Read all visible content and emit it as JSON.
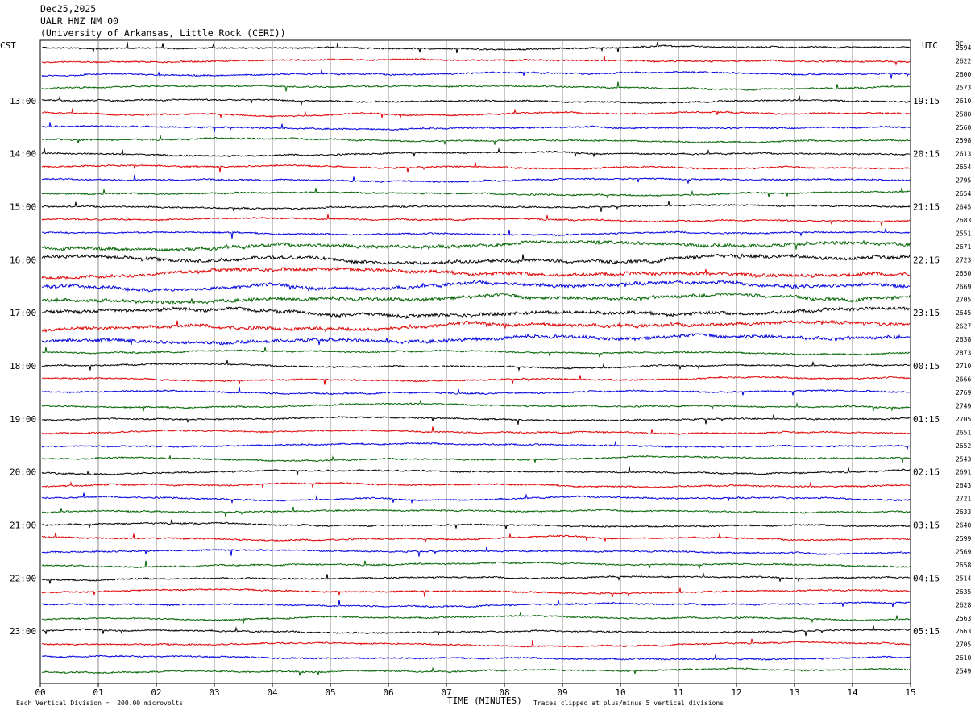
{
  "header": {
    "date": "Dec25,2025",
    "station": "UALR HNZ NM 00",
    "network": "(University of Arkansas, Little Rock (CERI))"
  },
  "left_axis_title": "CST",
  "right_axis_title": "UTC",
  "dc_title": "DC",
  "chart_data": {
    "type": "line",
    "xlabel": "TIME (MINUTES)",
    "xlim": [
      0,
      15
    ],
    "x_ticks": [
      "00",
      "01",
      "02",
      "03",
      "04",
      "05",
      "06",
      "07",
      "08",
      "09",
      "10",
      "11",
      "12",
      "13",
      "14",
      "15"
    ],
    "trace_colors": [
      "#000000",
      "#e00000",
      "#0000e0",
      "#006400"
    ],
    "trace_count": 48,
    "left_time_labels": [
      {
        "trace": 4,
        "text": "13:00"
      },
      {
        "trace": 8,
        "text": "14:00"
      },
      {
        "trace": 12,
        "text": "15:00"
      },
      {
        "trace": 16,
        "text": "16:00"
      },
      {
        "trace": 20,
        "text": "17:00"
      },
      {
        "trace": 24,
        "text": "18:00"
      },
      {
        "trace": 28,
        "text": "19:00"
      },
      {
        "trace": 32,
        "text": "20:00"
      },
      {
        "trace": 36,
        "text": "21:00"
      },
      {
        "trace": 40,
        "text": "22:00"
      },
      {
        "trace": 44,
        "text": "23:00"
      }
    ],
    "right_time_labels": [
      {
        "trace": 4,
        "text": "19:15"
      },
      {
        "trace": 8,
        "text": "20:15"
      },
      {
        "trace": 12,
        "text": "21:15"
      },
      {
        "trace": 16,
        "text": "22:15"
      },
      {
        "trace": 20,
        "text": "23:15"
      },
      {
        "trace": 24,
        "text": "00:15"
      },
      {
        "trace": 28,
        "text": "01:15"
      },
      {
        "trace": 32,
        "text": "02:15"
      },
      {
        "trace": 36,
        "text": "03:15"
      },
      {
        "trace": 40,
        "text": "04:15"
      },
      {
        "trace": 44,
        "text": "05:15"
      }
    ],
    "dc_offsets": [
      "2594",
      "2622",
      "2600",
      "2573",
      "2610",
      "2580",
      "2560",
      "2598",
      "2613",
      "2654",
      "2795",
      "2654",
      "2645",
      "2683",
      "2551",
      "2671",
      "2723",
      "2650",
      "2669",
      "2705",
      "2645",
      "2627",
      "2638",
      "2873",
      "2710",
      "2666",
      "2769",
      "2749",
      "2705",
      "2651",
      "2652",
      "2543",
      "2691",
      "2643",
      "2721",
      "2633",
      "2640",
      "2599",
      "2569",
      "2658",
      "2514",
      "2635",
      "2628",
      "2563",
      "2663",
      "2705",
      "2610",
      "2549"
    ],
    "footer_left": "Each Vertical Division =  200.00 microvolts",
    "footer_right": "Traces clipped at plus/minus 5 vertical divisions"
  }
}
